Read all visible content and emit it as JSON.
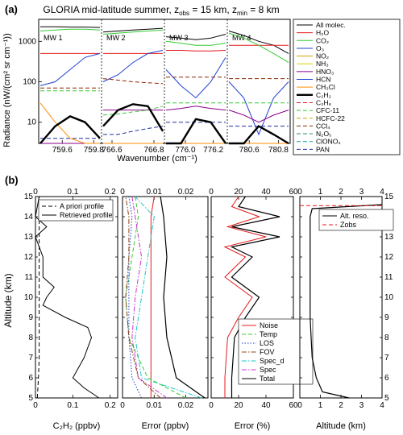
{
  "panel_a": {
    "label": "(a)",
    "title": "GLORIA mid-latitude summer, z",
    "title_sub1": "obs",
    "title_mid": " = 15 km, z",
    "title_sub2": "min",
    "title_end": " = 8 km",
    "ylabel": "Radiance (nW/(cm² sr cm⁻¹))",
    "xlabel": "Wavenumber (cm⁻¹)",
    "legend": [
      {
        "name": "All molec.",
        "color": "#000000",
        "dash": "solid",
        "width": 1
      },
      {
        "name": "H₂O",
        "color": "#e41a1c",
        "dash": "solid",
        "width": 1
      },
      {
        "name": "CO₂",
        "color": "#33cc33",
        "dash": "solid",
        "width": 1
      },
      {
        "name": "O₃",
        "color": "#1f3fd1",
        "dash": "solid",
        "width": 1
      },
      {
        "name": "NO₂",
        "color": "#c9a400",
        "dash": "solid",
        "width": 1
      },
      {
        "name": "NH₃",
        "color": "#d4d400",
        "dash": "solid",
        "width": 1
      },
      {
        "name": "HNO₃",
        "color": "#8b008b",
        "dash": "solid",
        "width": 1
      },
      {
        "name": "HCN",
        "color": "#1f3fd1",
        "dash": "solid",
        "width": 1
      },
      {
        "name": "CH₃Cl",
        "color": "#ff8c00",
        "dash": "solid",
        "width": 1
      },
      {
        "name": "C₂H₂",
        "color": "#000000",
        "dash": "solid",
        "width": 2.4
      },
      {
        "name": "C₂H₆",
        "color": "#e41a1c",
        "dash": "dash",
        "width": 1
      },
      {
        "name": "CFC-11",
        "color": "#33cc33",
        "dash": "dash",
        "width": 1
      },
      {
        "name": "HCFC-22",
        "color": "#c9a400",
        "dash": "dash",
        "width": 1
      },
      {
        "name": "CCl₄",
        "color": "#8b2500",
        "dash": "dash",
        "width": 1
      },
      {
        "name": "N₂O₅",
        "color": "#2e8b57",
        "dash": "dash",
        "width": 1
      },
      {
        "name": "ClONO₂",
        "color": "#1aa3a3",
        "dash": "dash",
        "width": 1
      },
      {
        "name": "PAN",
        "color": "#1f2f9f",
        "dash": "dash",
        "width": 1
      }
    ],
    "windows": [
      {
        "name": "MW 1",
        "ticks": [
          "759.6",
          "759.8"
        ],
        "xlim": [
          759.45,
          759.85
        ]
      },
      {
        "name": "MW 2",
        "ticks": [
          "766.6",
          "766.8"
        ],
        "xlim": [
          766.55,
          766.85
        ]
      },
      {
        "name": "MW 3",
        "ticks": [
          "776.0",
          "776.2"
        ],
        "xlim": [
          775.85,
          776.3
        ]
      },
      {
        "name": "MW 4",
        "ticks": [
          "780.6",
          "780.8"
        ],
        "xlim": [
          780.45,
          780.88
        ]
      }
    ],
    "y_ticks": [
      "10",
      "100",
      "1000"
    ],
    "ylim": [
      3,
      3500
    ],
    "series": [
      {
        "legend": 0,
        "values": [
          [
            2300,
            2300,
            2250,
            2250,
            2200
          ],
          [
            1700,
            1800,
            1900,
            2000,
            2100
          ],
          [
            1300,
            1200,
            1100,
            1200,
            1500
          ],
          [
            1800,
            1400,
            1000,
            800,
            500
          ]
        ]
      },
      {
        "legend": 1,
        "values": [
          [
            500,
            500,
            500,
            500,
            500
          ],
          [
            500,
            500,
            500,
            500,
            500
          ],
          [
            600,
            600,
            580,
            580,
            600
          ],
          [
            800,
            800,
            800,
            800,
            800
          ]
        ]
      },
      {
        "legend": 2,
        "values": [
          [
            1800,
            1900,
            2000,
            2000,
            1900
          ],
          [
            1500,
            1600,
            1700,
            1800,
            1900
          ],
          [
            1000,
            900,
            800,
            800,
            900
          ],
          [
            1600,
            1200,
            800,
            500,
            300
          ]
        ]
      },
      {
        "legend": 3,
        "values": [
          [
            80,
            100,
            200,
            400,
            500
          ],
          [
            100,
            150,
            300,
            500,
            600
          ],
          [
            200,
            80,
            40,
            100,
            400
          ],
          [
            100,
            40,
            5,
            40,
            100
          ]
        ]
      },
      {
        "legend": 6,
        "values": [
          [
            3,
            3,
            3,
            3,
            3
          ],
          [
            20,
            20,
            20,
            20,
            20
          ],
          [
            20,
            22,
            25,
            22,
            20
          ],
          [
            20,
            15,
            10,
            15,
            20
          ]
        ]
      },
      {
        "legend": 11,
        "values": [
          [
            60,
            60,
            60,
            60,
            60
          ],
          [
            15,
            16,
            18,
            20,
            25
          ],
          [
            30,
            30,
            30,
            30,
            30
          ],
          [
            30,
            30,
            30,
            30,
            30
          ]
        ]
      },
      {
        "legend": 13,
        "values": [
          [
            70,
            70,
            70,
            70,
            70
          ],
          [
            120,
            110,
            100,
            95,
            90
          ],
          [
            130,
            130,
            130,
            130,
            130
          ],
          [
            120,
            120,
            120,
            120,
            120
          ]
        ]
      },
      {
        "legend": 16,
        "values": [
          [
            4,
            4,
            4,
            4,
            4
          ],
          [
            5,
            5,
            6,
            7,
            8
          ],
          [
            10,
            10,
            10,
            10,
            10
          ],
          [
            8,
            8,
            8,
            8,
            8
          ]
        ]
      },
      {
        "legend": 8,
        "values": [
          [
            30,
            10,
            4,
            3,
            3
          ],
          [
            3,
            3,
            3,
            3,
            3
          ],
          [
            3,
            3,
            3,
            3,
            3
          ],
          [
            3,
            3,
            3,
            3,
            3
          ]
        ]
      },
      {
        "legend": 9,
        "values": [
          [
            3,
            8,
            14,
            10,
            4
          ],
          [
            8,
            20,
            28,
            25,
            6
          ],
          [
            3,
            3,
            12,
            10,
            3
          ],
          [
            3,
            3,
            8,
            5,
            3
          ]
        ]
      }
    ]
  },
  "panel_b": {
    "label": "(b)",
    "ylabel": "Altitude (km)",
    "y_ticks": [
      "5",
      "6",
      "7",
      "8",
      "9",
      "10",
      "11",
      "12",
      "13",
      "14",
      "15"
    ],
    "ylim": [
      5,
      15
    ],
    "p1": {
      "xlabel": "C₂H₂ (ppbv)",
      "x_ticks": [
        "0",
        "0.1",
        "0.2"
      ],
      "xlim": [
        0,
        0.22
      ],
      "legend": [
        "A priori profile",
        "Retrieved profile"
      ],
      "apriori": [
        [
          0.005,
          5
        ],
        [
          0.008,
          6
        ],
        [
          0.01,
          7
        ],
        [
          0.01,
          8
        ],
        [
          0.01,
          9
        ],
        [
          0.01,
          10
        ],
        [
          0.01,
          11
        ],
        [
          0.01,
          12
        ],
        [
          0.01,
          13
        ],
        [
          0.01,
          14
        ],
        [
          0.01,
          15
        ]
      ],
      "retrieved": [
        [
          0.17,
          5
        ],
        [
          0.13,
          5.5
        ],
        [
          0.1,
          6
        ],
        [
          0.13,
          7
        ],
        [
          0.15,
          8
        ],
        [
          0.14,
          8.5
        ],
        [
          0.08,
          9
        ],
        [
          0.02,
          9.6
        ],
        [
          0.03,
          10
        ],
        [
          0.05,
          10.5
        ],
        [
          0.02,
          11
        ],
        [
          0.02,
          12
        ],
        [
          0.0,
          13
        ],
        [
          0.03,
          13.5
        ],
        [
          0.0,
          14
        ],
        [
          0.01,
          15
        ]
      ]
    },
    "p2": {
      "xlabel": "Error (ppbv)",
      "x_ticks": [
        "0",
        "0.01",
        "0.02"
      ],
      "xlim": [
        0,
        0.027
      ],
      "legend": [
        "Noise",
        "Temp",
        "LOS",
        "FOV",
        "Spec_d",
        "Spec",
        "Total"
      ],
      "colors": [
        "#e41a1c",
        "#33cc33",
        "#1f3fd1",
        "#8b4513",
        "#1ec8c8",
        "#cc33cc",
        "#000000"
      ],
      "dashes": [
        "solid",
        "dash",
        "dot",
        "dashdot",
        "dashdot",
        "dashdot",
        "solid"
      ],
      "series": [
        [
          [
            0.009,
            5
          ],
          [
            0.009,
            6
          ],
          [
            0.009,
            8
          ],
          [
            0.009,
            10
          ],
          [
            0.009,
            12
          ],
          [
            0.009,
            14
          ],
          [
            0.01,
            15
          ]
        ],
        [
          [
            0.02,
            5
          ],
          [
            0.008,
            6
          ],
          [
            0.002,
            8
          ],
          [
            0.001,
            10
          ],
          [
            0.003,
            12
          ],
          [
            0.005,
            14
          ],
          [
            0.004,
            15
          ]
        ],
        [
          [
            0.006,
            5
          ],
          [
            0.003,
            6
          ],
          [
            0.002,
            8
          ],
          [
            0.002,
            10
          ],
          [
            0.002,
            12
          ],
          [
            0.003,
            14
          ],
          [
            0.002,
            15
          ]
        ],
        [
          [
            0.012,
            5
          ],
          [
            0.005,
            6
          ],
          [
            0.002,
            8
          ],
          [
            0.001,
            10
          ],
          [
            0.002,
            12
          ],
          [
            0.002,
            14
          ],
          [
            0.001,
            15
          ]
        ],
        [
          [
            0.025,
            5
          ],
          [
            0.006,
            6
          ],
          [
            0.004,
            8
          ],
          [
            0.006,
            10
          ],
          [
            0.008,
            12
          ],
          [
            0.01,
            14
          ],
          [
            0.004,
            15
          ]
        ],
        [
          [
            0.014,
            5
          ],
          [
            0.005,
            6
          ],
          [
            0.003,
            8
          ],
          [
            0.004,
            10
          ],
          [
            0.006,
            12
          ],
          [
            0.004,
            14
          ],
          [
            0.003,
            15
          ]
        ],
        [
          [
            0.026,
            5
          ],
          [
            0.017,
            6
          ],
          [
            0.014,
            8
          ],
          [
            0.013,
            10
          ],
          [
            0.014,
            12
          ],
          [
            0.013,
            14
          ],
          [
            0.012,
            15
          ]
        ]
      ]
    },
    "p3": {
      "xlabel": "Error (%)",
      "x_ticks_top": [
        "0",
        "20",
        "40",
        "60"
      ],
      "x_ticks": [
        "0",
        "20",
        "40",
        "60"
      ],
      "xlim": [
        0,
        60
      ],
      "noise": [
        [
          10,
          5
        ],
        [
          10,
          6
        ],
        [
          12,
          8
        ],
        [
          20,
          9
        ],
        [
          30,
          10
        ],
        [
          10,
          11
        ],
        [
          25,
          12
        ],
        [
          10,
          12.5
        ],
        [
          40,
          13
        ],
        [
          12,
          13.5
        ],
        [
          35,
          14
        ],
        [
          15,
          14.5
        ],
        [
          20,
          15
        ]
      ],
      "total": [
        [
          15,
          5
        ],
        [
          15,
          6
        ],
        [
          17,
          8
        ],
        [
          25,
          9
        ],
        [
          35,
          10
        ],
        [
          15,
          11
        ],
        [
          30,
          12
        ],
        [
          15,
          12.5
        ],
        [
          50,
          13
        ],
        [
          15,
          13.5
        ],
        [
          50,
          14
        ],
        [
          20,
          14.5
        ],
        [
          25,
          15
        ]
      ]
    },
    "p4": {
      "xlabel": "Altitude (km)",
      "x_ticks": [
        "0",
        "1",
        "2",
        "3",
        "4"
      ],
      "xlim": [
        0,
        4
      ],
      "legend": [
        "Alt. reso.",
        "Zobs"
      ],
      "reso": [
        [
          2.4,
          5
        ],
        [
          1.1,
          5.3
        ],
        [
          0.8,
          6
        ],
        [
          0.6,
          7
        ],
        [
          0.55,
          8
        ],
        [
          0.5,
          9
        ],
        [
          0.5,
          10
        ],
        [
          0.5,
          11
        ],
        [
          0.5,
          12
        ],
        [
          0.5,
          13
        ],
        [
          0.5,
          14
        ],
        [
          0.6,
          14.4
        ],
        [
          4,
          14.6
        ]
      ],
      "zobs": 15
    }
  }
}
